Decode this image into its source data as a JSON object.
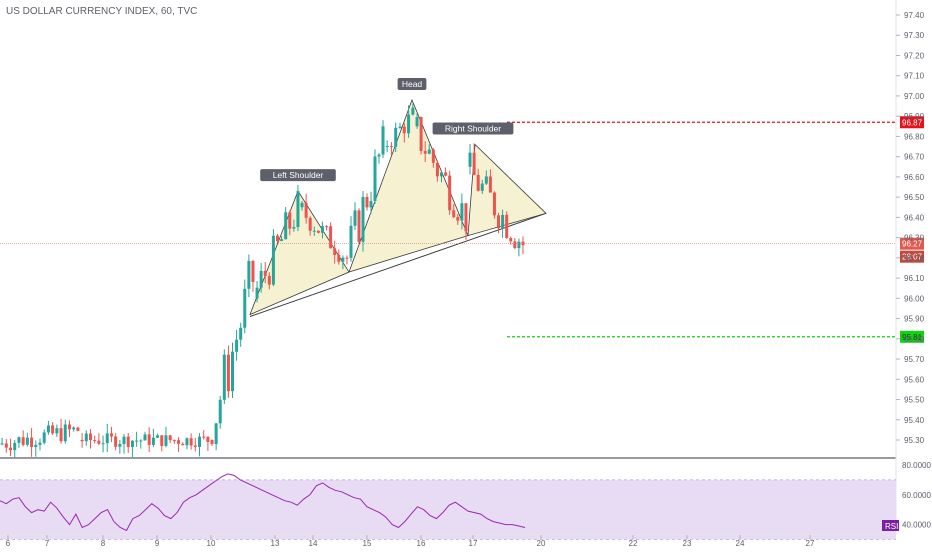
{
  "title": "US DOLLAR CURRENCY INDEX, 60, TVC",
  "colors": {
    "up": "#26a69a",
    "down": "#ef5350",
    "pattern_fill": "#f3efc9",
    "neckline": "#3b3b3b",
    "red_line": "#e8111a",
    "green_line": "#14d114",
    "rsi_line": "#9c27b0",
    "rsi_band": "#e8dcf4",
    "price_line": "#e57373",
    "axis_text": "#5d606b"
  },
  "annotations": [
    {
      "label": "Left Shoulder"
    },
    {
      "label": "Head"
    },
    {
      "label": "Right Shoulder"
    }
  ],
  "badges": {
    "red_target": "96.87",
    "current_price": "96.27",
    "countdown": "28:07",
    "green_target": "95.81"
  },
  "rsi": {
    "label": "RSI",
    "ticks": [
      "80.0000",
      "60.0000",
      "40.0000"
    ]
  },
  "chart_data": [
    {
      "type": "candlestick",
      "title": "US DOLLAR CURRENCY INDEX, 60, TVC",
      "ylim": [
        95.2,
        97.5
      ],
      "y_ticks": [
        "97.40",
        "97.30",
        "97.20",
        "97.10",
        "97.00",
        "96.90",
        "96.80",
        "96.70",
        "96.60",
        "96.50",
        "96.40",
        "96.30",
        "96.20",
        "96.10",
        "96.00",
        "95.90",
        "95.80",
        "95.70",
        "95.60",
        "95.50",
        "95.40",
        "95.30"
      ],
      "x_ticks": [
        "6",
        "7",
        "8",
        "9",
        "10",
        "13",
        "14",
        "15",
        "16",
        "17",
        "20",
        "22",
        "23",
        "24",
        "27"
      ],
      "levels": {
        "red": 96.87,
        "current": 96.27,
        "green": 95.81
      },
      "pattern_points": {
        "left_shoulder_start": 95.92,
        "left_shoulder_peak": 96.53,
        "neckline_low_1": 96.13,
        "head_peak": 96.98,
        "neckline_low_2": 96.31,
        "right_shoulder_peak": 96.76,
        "apex": 96.42
      },
      "segments": [
        {
          "label": "6-8",
          "trend": "sideways",
          "from": 95.28,
          "to": 95.35,
          "range": [
            95.24,
            95.52
          ]
        },
        {
          "label": "8-10",
          "trend": "sideways",
          "from": 95.3,
          "to": 95.3,
          "range": [
            95.2,
            95.4
          ]
        },
        {
          "label": "10-12",
          "trend": "up",
          "from": 95.3,
          "to": 96.1,
          "range": [
            95.28,
            96.2
          ]
        },
        {
          "label": "12-13",
          "trend": "up",
          "from": 96.0,
          "to": 96.45,
          "range": [
            95.92,
            96.53
          ]
        },
        {
          "label": "13-14",
          "trend": "down",
          "from": 96.45,
          "to": 96.2,
          "range": [
            96.13,
            96.5
          ]
        },
        {
          "label": "14-15",
          "trend": "up",
          "from": 96.2,
          "to": 96.75,
          "range": [
            96.13,
            96.85
          ]
        },
        {
          "label": "15-16",
          "trend": "up",
          "from": 96.75,
          "to": 96.9,
          "range": [
            96.65,
            96.98
          ]
        },
        {
          "label": "16-17",
          "trend": "down",
          "from": 96.85,
          "to": 96.4,
          "range": [
            96.31,
            96.9
          ]
        },
        {
          "label": "17-18",
          "trend": "down",
          "from": 96.65,
          "to": 96.27,
          "range": [
            96.2,
            96.76
          ]
        }
      ]
    },
    {
      "type": "line",
      "title": "RSI",
      "ylim": [
        35,
        82
      ],
      "series": [
        {
          "values": [
            56,
            54,
            57,
            58,
            52,
            48,
            50,
            49,
            55,
            51,
            45,
            40,
            47,
            38,
            40,
            44,
            48,
            50,
            42,
            38,
            36,
            44,
            46,
            50,
            54,
            51,
            46,
            44,
            48,
            55,
            58,
            60,
            63,
            66,
            69,
            72,
            74,
            73,
            70,
            68,
            66,
            64,
            62,
            60,
            58,
            56,
            55,
            53,
            57,
            60,
            66,
            68,
            65,
            63,
            62,
            60,
            58,
            57,
            52,
            50,
            48,
            45,
            40,
            38,
            42,
            47,
            52,
            50,
            46,
            44,
            48,
            53,
            55,
            52,
            49,
            48,
            47,
            44,
            42,
            41,
            40,
            40,
            39,
            38
          ]
        }
      ]
    }
  ]
}
